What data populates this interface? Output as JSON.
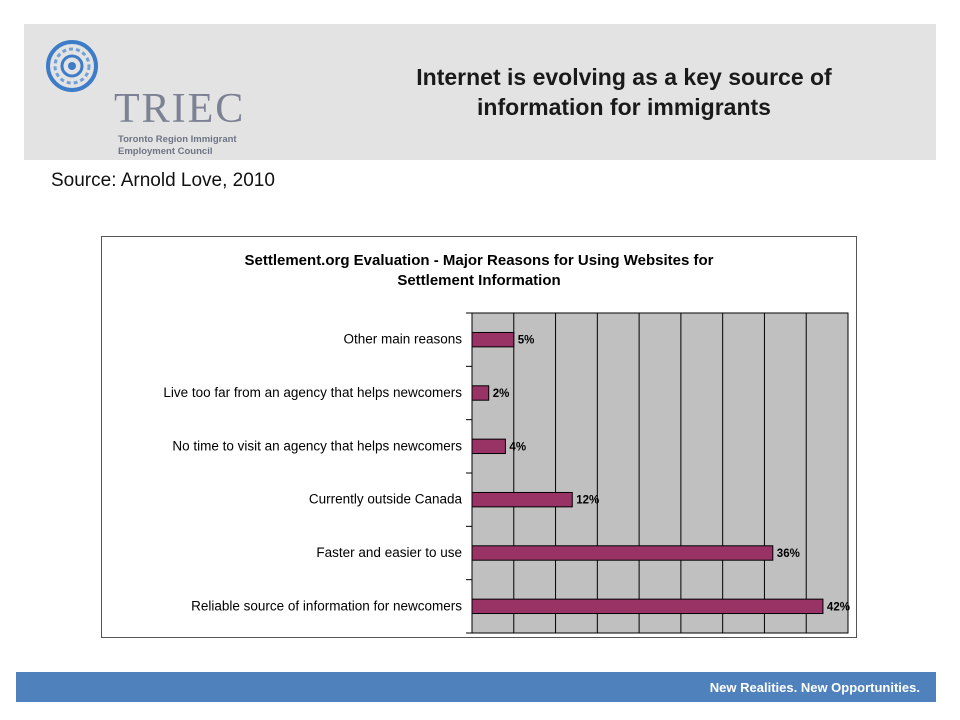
{
  "header": {
    "logo_word": "TRIEC",
    "logo_subtitle_line1": "Toronto Region Immigrant",
    "logo_subtitle_line2": "Employment Council",
    "title_line1": "Internet is evolving as a key source of",
    "title_line2": "information for immigrants"
  },
  "source": "Source: Arnold Love, 2010",
  "chart_data": {
    "type": "bar",
    "orientation": "horizontal",
    "title_line1": "Settlement.org Evaluation - Major Reasons for Using Websites for",
    "title_line2": "Settlement Information",
    "categories": [
      "Other main reasons",
      "Live too far from an agency that helps newcomers",
      "No time to visit an agency that helps newcomers",
      "Currently outside Canada",
      "Faster and easier to use",
      "Reliable source of information for newcomers"
    ],
    "values": [
      5,
      2,
      4,
      12,
      36,
      42
    ],
    "value_labels": [
      "5%",
      "2%",
      "4%",
      "12%",
      "36%",
      "42%"
    ],
    "xlim": [
      0,
      45
    ],
    "x_gridline_step": 5,
    "grid": true,
    "bar_color": "#993366",
    "plot_background": "#c0c0c0",
    "legend": "none"
  },
  "footer": {
    "tagline": "New Realities. New Opportunities.",
    "color": "#4f81bd"
  }
}
